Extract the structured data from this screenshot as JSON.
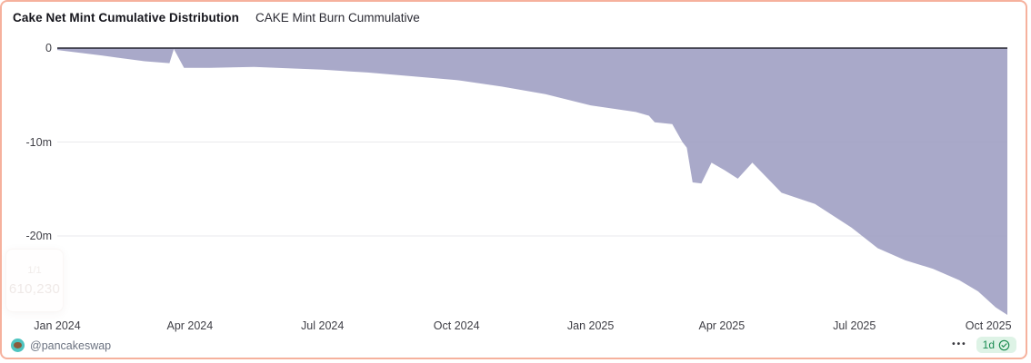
{
  "header": {
    "title": "Cake Net Mint Cumulative Distribution",
    "subtitle": "CAKE Mint Burn Cummulative"
  },
  "tooltip_ghost": {
    "line1": "1/1",
    "line2": "610,230"
  },
  "footer": {
    "handle": "@pancakeswap",
    "menu_dots_icon": "•••",
    "interval_badge_label": "1d"
  },
  "colors": {
    "card_border": "#f6b19d",
    "area_fill": "#9a9abf",
    "area_opacity": 0.85,
    "zero_line": "#23232e",
    "gridline": "#e9e9ec",
    "axis_text": "#3f3f46",
    "badge_bg": "#def3e6",
    "badge_text": "#178a50",
    "avatar_bg": "#4fc4c0"
  },
  "chart_data": {
    "type": "area",
    "title": "Cake Net Mint Cumulative Distribution",
    "series_name": "CAKE Mint Burn Cummulative",
    "unit": "millions",
    "x_domain": [
      "2024-01-01",
      "2025-10-14"
    ],
    "y_domain": [
      -28.5,
      0
    ],
    "grid": "horizontal",
    "legend_position": "none",
    "y_ticks": [
      {
        "label": "0",
        "value": 0
      },
      {
        "label": "-10m",
        "value": -10
      },
      {
        "label": "-20m",
        "value": -20
      }
    ],
    "x_ticks": [
      {
        "label": "Jan 2024",
        "date": "2024-01-01"
      },
      {
        "label": "Apr 2024",
        "date": "2024-04-01"
      },
      {
        "label": "Jul 2024",
        "date": "2024-07-01"
      },
      {
        "label": "Oct 2024",
        "date": "2024-10-01"
      },
      {
        "label": "Jan 2025",
        "date": "2025-01-01"
      },
      {
        "label": "Apr 2025",
        "date": "2025-04-01"
      },
      {
        "label": "Jul 2025",
        "date": "2025-07-01"
      },
      {
        "label": "Oct 2025",
        "date": "2025-10-01"
      }
    ],
    "points": [
      [
        "2024-01-01",
        -0.2
      ],
      [
        "2024-02-01",
        -0.8
      ],
      [
        "2024-03-01",
        -1.4
      ],
      [
        "2024-03-18",
        -1.6
      ],
      [
        "2024-03-21",
        -0.1
      ],
      [
        "2024-03-28",
        -2.1
      ],
      [
        "2024-04-15",
        -2.1
      ],
      [
        "2024-05-15",
        -2.0
      ],
      [
        "2024-06-15",
        -2.2
      ],
      [
        "2024-07-01",
        -2.3
      ],
      [
        "2024-08-01",
        -2.6
      ],
      [
        "2024-09-01",
        -3.0
      ],
      [
        "2024-10-01",
        -3.4
      ],
      [
        "2024-11-01",
        -4.1
      ],
      [
        "2024-12-01",
        -4.9
      ],
      [
        "2025-01-01",
        -6.1
      ],
      [
        "2025-02-01",
        -6.8
      ],
      [
        "2025-02-10",
        -7.2
      ],
      [
        "2025-02-14",
        -7.9
      ],
      [
        "2025-02-26",
        -8.1
      ],
      [
        "2025-03-05",
        -10.0
      ],
      [
        "2025-03-08",
        -10.6
      ],
      [
        "2025-03-12",
        -14.3
      ],
      [
        "2025-03-18",
        -14.4
      ],
      [
        "2025-03-25",
        -12.2
      ],
      [
        "2025-04-03",
        -13.0
      ],
      [
        "2025-04-12",
        -13.9
      ],
      [
        "2025-04-22",
        -12.2
      ],
      [
        "2025-05-12",
        -15.4
      ],
      [
        "2025-06-04",
        -16.6
      ],
      [
        "2025-06-29",
        -19.1
      ],
      [
        "2025-07-17",
        -21.3
      ],
      [
        "2025-08-05",
        -22.6
      ],
      [
        "2025-08-24",
        -23.5
      ],
      [
        "2025-09-11",
        -24.7
      ],
      [
        "2025-09-24",
        -25.9
      ],
      [
        "2025-10-06",
        -27.6
      ],
      [
        "2025-10-14",
        -28.4
      ]
    ]
  }
}
